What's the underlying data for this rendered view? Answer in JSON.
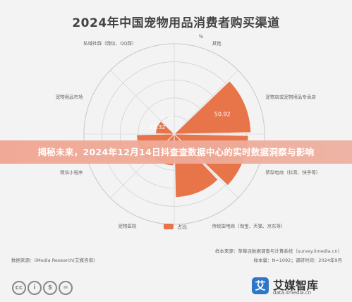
{
  "chart_data": {
    "type": "polar-bar",
    "title": "2024年中国宠物用品消费者购买渠道",
    "unit": "%",
    "rmax": 60,
    "categories": [
      "其他",
      "宠物店或宠物用品专卖店",
      "新型电商（抖音、快手等）",
      "传统型电商（淘宝、天猫、京东等）",
      "宠物医院",
      "微信小程序",
      "宠物用品市场",
      "私域社群（微信、QQ群）"
    ],
    "values": [
      0.98,
      50.92,
      49.26,
      42.0,
      21.0,
      25.0,
      12.32,
      0.18
    ],
    "value_labels": [
      "",
      "50.92",
      "49.26",
      "",
      "",
      "25.00",
      "12.32",
      "0.18"
    ],
    "series": [
      {
        "name": "占比"
      }
    ],
    "color": "#e8744a"
  },
  "banner": "揭秘未来，2024年12月14日抖查查数据中心的实时数据洞察与影响",
  "footer": {
    "source": "数据来源：iiMedia Research(艾媒咨询)",
    "sample_note": "样本来源：草莓派数据调查与计算系统（survey.iimedia.cn）",
    "sample_size": "样本量：N=1092；调研时间：2024年9月",
    "cc_labels": [
      "cc",
      "i",
      "$",
      "="
    ],
    "brand_logo": "艾",
    "brand_name": "艾媒智库",
    "brand_url": "data.iimedia.cn"
  }
}
